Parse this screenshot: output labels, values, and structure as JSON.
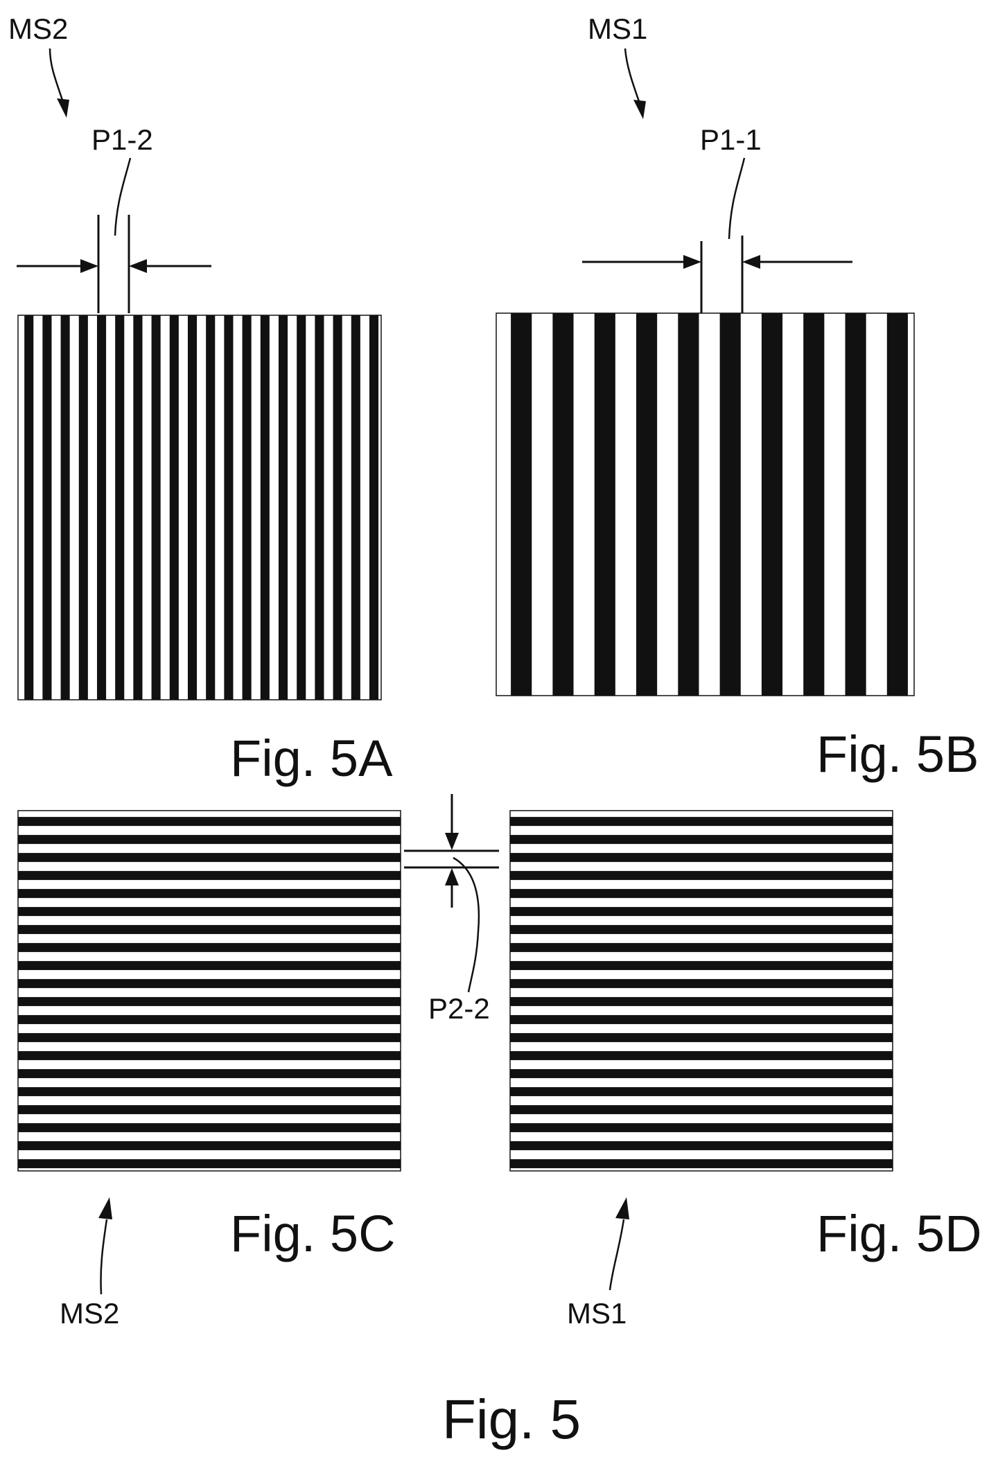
{
  "figure": {
    "title": "Fig. 5",
    "background": "#ffffff",
    "ink": "#111111"
  },
  "panels": [
    {
      "id": "5A",
      "caption": "Fig. 5A",
      "orientation": "vertical",
      "mask_label": "MS2",
      "pitch_label": "P1-2",
      "stripe_count": 20
    },
    {
      "id": "5B",
      "caption": "Fig. 5B",
      "orientation": "vertical",
      "mask_label": "MS1",
      "pitch_label": "P1-1",
      "stripe_count": 10
    },
    {
      "id": "5C",
      "caption": "Fig. 5C",
      "orientation": "horizontal",
      "mask_label": "MS2",
      "stripe_count": 20
    },
    {
      "id": "5D",
      "caption": "Fig. 5D",
      "orientation": "horizontal",
      "mask_label": "MS1",
      "stripe_count": 20
    }
  ],
  "pitch_label_between_C_D": "P2-2",
  "icons": {
    "arrow": "arrow-icon"
  }
}
